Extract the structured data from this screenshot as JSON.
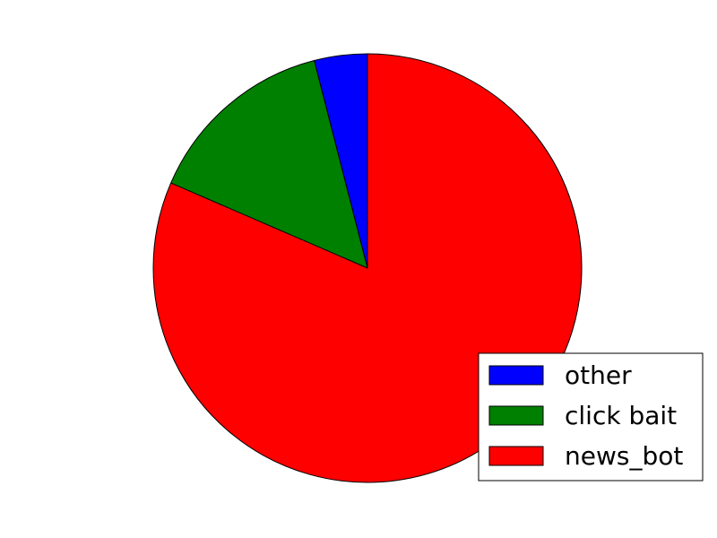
{
  "chart_data": {
    "type": "pie",
    "start_angle_deg": 90,
    "direction": "counterclockwise",
    "slices": [
      {
        "label": "other",
        "value": 4,
        "color": "#0000ff"
      },
      {
        "label": "click bait",
        "value": 14.5,
        "color": "#008000"
      },
      {
        "label": "news_bot",
        "value": 81.5,
        "color": "#ff0000"
      }
    ],
    "legend": {
      "position": "lower-right",
      "entries": [
        "other",
        "click bait",
        "news_bot"
      ]
    }
  }
}
